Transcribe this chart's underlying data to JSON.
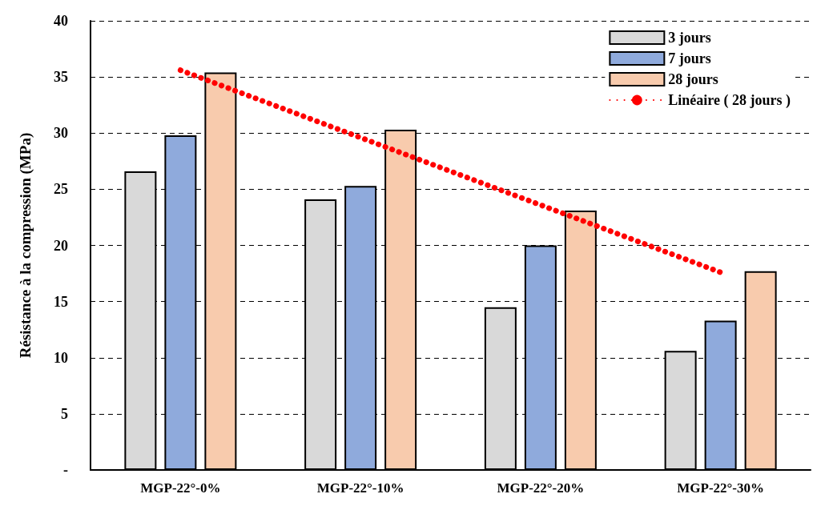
{
  "chart_data": {
    "type": "bar",
    "ylabel": "Résistance à la compression (MPa)",
    "categories": [
      "MGP-22°-0%",
      "MGP-22°-10%",
      "MGP-22°-20%",
      "MGP-22°-30%"
    ],
    "series": [
      {
        "name": "3 jours",
        "color": "#d9d9d9",
        "values": [
          26.6,
          24.1,
          14.5,
          10.6
        ]
      },
      {
        "name": "7 jours",
        "color": "#8faadc",
        "values": [
          29.8,
          25.3,
          20.0,
          13.3
        ]
      },
      {
        "name": "28 jours",
        "color": "#f8cbad",
        "values": [
          35.4,
          30.3,
          23.1,
          17.7
        ]
      },
      {
        "name": "Linéaire ( 28 jours )",
        "type": "line",
        "color": "#ff0000",
        "line_style": "dotted",
        "values": [
          35.6,
          29.6,
          23.6,
          17.6
        ]
      }
    ],
    "ylim": [
      0,
      40
    ],
    "yticks": [
      {
        "value": 0,
        "label": "-"
      },
      5,
      10,
      15,
      20,
      25,
      30,
      35,
      40
    ],
    "grid": "y",
    "legend": "top right",
    "marker": "none"
  }
}
